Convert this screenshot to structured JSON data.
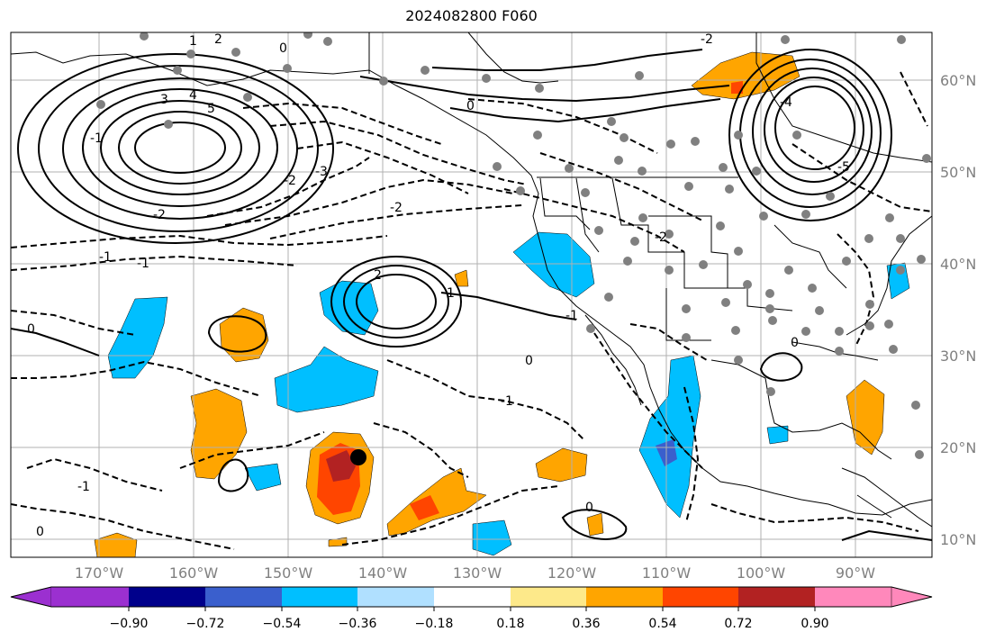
{
  "title": "2024082800 F060",
  "lat_labels": [
    "60°N",
    "50°N",
    "40°N",
    "30°N",
    "20°N",
    "10°N"
  ],
  "lon_labels": [
    "170°W",
    "160°W",
    "150°W",
    "140°W",
    "130°W",
    "120°W",
    "110°W",
    "100°W",
    "90°W"
  ],
  "colorbar": {
    "ticks": [
      "−0.90",
      "−0.72",
      "−0.54",
      "−0.36",
      "−0.18",
      "0.18",
      "0.36",
      "0.54",
      "0.72",
      "0.90"
    ],
    "colors": [
      "#9b30d0",
      "#00008b",
      "#3a5fcd",
      "#00bfff",
      "#b0e0ff",
      "#ffffff",
      "#fde98a",
      "#ffa500",
      "#ff4500",
      "#b22222",
      "#ff88bb"
    ]
  },
  "contour_labels": [
    "1",
    "2",
    "0",
    "-1",
    "-2",
    "3",
    "4",
    "5",
    "-3",
    "-2",
    "2",
    "-2",
    "1",
    "0",
    "-1",
    "0",
    "-1",
    "-1",
    "0",
    "0",
    "0",
    "-5",
    "-4",
    "-2",
    "-1",
    "0",
    "-2",
    "-1"
  ],
  "colors": {
    "positive_orange": "#ffa500",
    "positive_red": "#ff4500",
    "positive_dark": "#b22222",
    "negative_light": "#00bfff",
    "negative_blue": "#3a5fcd",
    "station": "#808080"
  }
}
